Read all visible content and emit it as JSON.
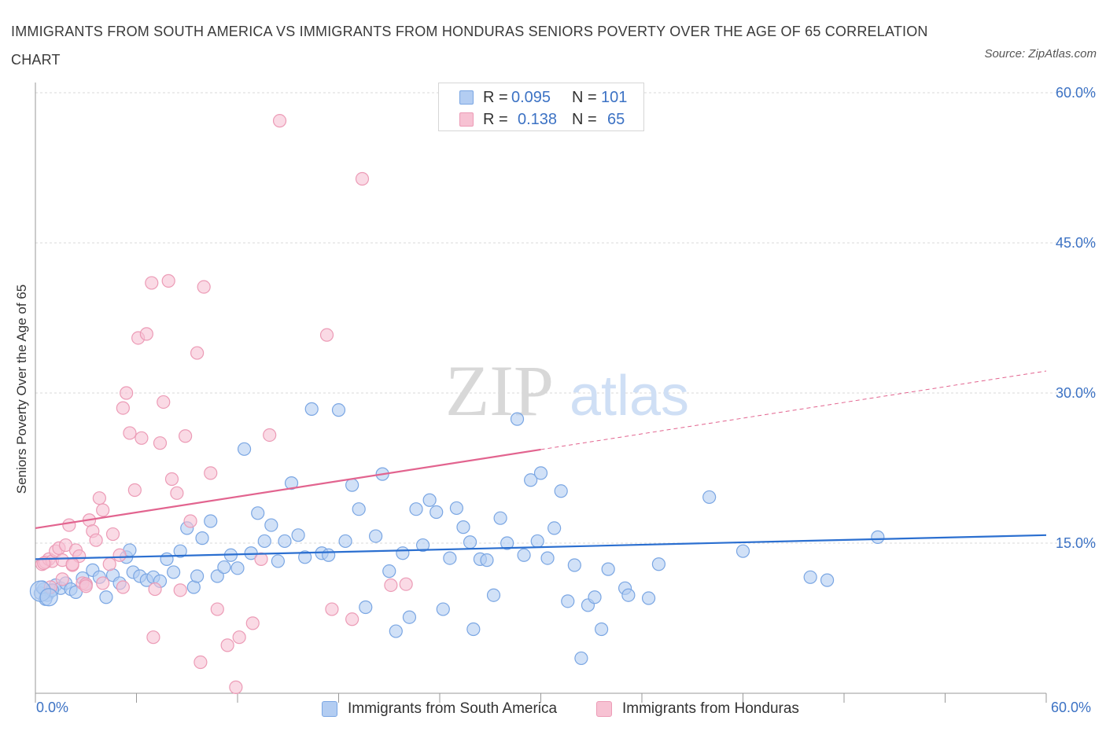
{
  "title": "IMMIGRANTS FROM SOUTH AMERICA VS IMMIGRANTS FROM HONDURAS SENIORS POVERTY OVER THE AGE OF 65 CORRELATION CHART",
  "source": "Source: ZipAtlas.com",
  "watermark": {
    "zip": "ZIP",
    "atlas": "atlas"
  },
  "legend": {
    "rows": [
      {
        "r_label": "R = ",
        "r_value": "0.095",
        "n_label": "N = ",
        "n_value": "101"
      },
      {
        "r_label": "R = ",
        "r_value": "0.138",
        "n_label": "N = ",
        "n_value": "65"
      }
    ]
  },
  "colors": {
    "blue_fill": "#b3cdf2",
    "blue_stroke": "#7aa6e3",
    "blue_line": "#2b6fd0",
    "pink_fill": "#f7c2d3",
    "pink_stroke": "#ec9bb6",
    "pink_line": "#e2648f",
    "axis_text": "#3c72c4",
    "grid": "#d9d9d9"
  },
  "chart_data": {
    "type": "scatter",
    "title": "IMMIGRANTS FROM SOUTH AMERICA VS IMMIGRANTS FROM HONDURAS SENIORS POVERTY OVER THE AGE OF 65 CORRELATION CHART",
    "xlabel": "",
    "ylabel": "Seniors Poverty Over the Age of 65",
    "xlim": [
      0,
      60
    ],
    "ylim": [
      0,
      60
    ],
    "x_tick_labels": [
      "0.0%",
      "60.0%"
    ],
    "y_tick_labels": [
      "15.0%",
      "30.0%",
      "45.0%",
      "60.0%"
    ],
    "y_tick_values": [
      15,
      30,
      45,
      60
    ],
    "grid": true,
    "legend_position": "top-center",
    "series": [
      {
        "name": "Immigrants from South America",
        "color": "#b3cdf2",
        "trend": {
          "x0": 0,
          "y0": 13.4,
          "x1": 60,
          "y1": 15.8,
          "dashed_from": null
        },
        "points": [
          [
            0.3,
            10.0
          ],
          [
            0.5,
            10.4
          ],
          [
            0.7,
            9.8
          ],
          [
            0.9,
            10.2
          ],
          [
            1.2,
            10.8
          ],
          [
            1.5,
            10.5
          ],
          [
            1.8,
            11.0
          ],
          [
            2.1,
            10.4
          ],
          [
            2.4,
            10.1
          ],
          [
            2.8,
            11.5
          ],
          [
            3.0,
            10.9
          ],
          [
            3.4,
            12.3
          ],
          [
            3.8,
            11.6
          ],
          [
            4.2,
            9.6
          ],
          [
            4.6,
            11.8
          ],
          [
            5.0,
            11.0
          ],
          [
            5.4,
            13.6
          ],
          [
            5.6,
            14.3
          ],
          [
            5.8,
            12.1
          ],
          [
            6.2,
            11.7
          ],
          [
            6.6,
            11.3
          ],
          [
            7.0,
            11.6
          ],
          [
            7.4,
            11.2
          ],
          [
            7.8,
            13.4
          ],
          [
            8.2,
            12.1
          ],
          [
            8.6,
            14.2
          ],
          [
            9.0,
            16.5
          ],
          [
            9.4,
            10.6
          ],
          [
            9.6,
            11.7
          ],
          [
            9.9,
            15.5
          ],
          [
            10.4,
            17.2
          ],
          [
            10.8,
            11.7
          ],
          [
            11.2,
            12.6
          ],
          [
            11.6,
            13.8
          ],
          [
            12.0,
            12.5
          ],
          [
            12.4,
            24.4
          ],
          [
            12.8,
            14.0
          ],
          [
            13.2,
            18.0
          ],
          [
            13.6,
            15.2
          ],
          [
            14.0,
            16.8
          ],
          [
            14.4,
            13.2
          ],
          [
            14.8,
            15.2
          ],
          [
            15.2,
            21.0
          ],
          [
            15.6,
            15.8
          ],
          [
            16.0,
            13.6
          ],
          [
            16.4,
            28.4
          ],
          [
            17.0,
            14.0
          ],
          [
            17.4,
            13.8
          ],
          [
            18.0,
            28.3
          ],
          [
            18.4,
            15.2
          ],
          [
            18.8,
            20.8
          ],
          [
            19.2,
            18.4
          ],
          [
            19.6,
            8.6
          ],
          [
            20.2,
            15.7
          ],
          [
            20.6,
            21.9
          ],
          [
            21.0,
            12.2
          ],
          [
            21.4,
            6.2
          ],
          [
            21.8,
            14.0
          ],
          [
            22.2,
            7.6
          ],
          [
            22.6,
            18.4
          ],
          [
            23.0,
            14.8
          ],
          [
            23.4,
            19.3
          ],
          [
            23.8,
            18.1
          ],
          [
            24.2,
            8.4
          ],
          [
            24.6,
            13.5
          ],
          [
            25.0,
            18.5
          ],
          [
            25.4,
            16.6
          ],
          [
            25.8,
            15.1
          ],
          [
            26.0,
            6.4
          ],
          [
            26.4,
            13.4
          ],
          [
            26.8,
            13.3
          ],
          [
            27.2,
            9.8
          ],
          [
            27.6,
            17.5
          ],
          [
            28.0,
            15.0
          ],
          [
            28.6,
            27.4
          ],
          [
            29.0,
            13.8
          ],
          [
            29.4,
            21.3
          ],
          [
            29.8,
            15.2
          ],
          [
            30.0,
            22.0
          ],
          [
            30.4,
            13.5
          ],
          [
            30.8,
            16.5
          ],
          [
            31.2,
            20.2
          ],
          [
            31.6,
            9.2
          ],
          [
            32.0,
            12.8
          ],
          [
            32.4,
            3.5
          ],
          [
            32.8,
            8.8
          ],
          [
            33.2,
            9.6
          ],
          [
            33.6,
            6.4
          ],
          [
            34.0,
            12.4
          ],
          [
            35.0,
            10.5
          ],
          [
            35.2,
            9.8
          ],
          [
            36.4,
            9.5
          ],
          [
            37.0,
            12.9
          ],
          [
            40.0,
            19.6
          ],
          [
            42.0,
            14.2
          ],
          [
            46.0,
            11.6
          ],
          [
            47.0,
            11.3
          ],
          [
            50.0,
            15.6
          ],
          [
            0.4,
            10.6
          ],
          [
            0.6,
            9.4
          ],
          [
            1.0,
            10.3
          ]
        ]
      },
      {
        "name": "Immigrants from Honduras",
        "color": "#f7c2d3",
        "trend": {
          "x0": 0,
          "y0": 16.5,
          "x1": 60,
          "y1": 32.2,
          "dashed_from": 30
        },
        "points": [
          [
            0.4,
            12.9
          ],
          [
            0.6,
            13.1
          ],
          [
            0.8,
            13.4
          ],
          [
            1.0,
            13.2
          ],
          [
            1.2,
            14.2
          ],
          [
            1.4,
            14.5
          ],
          [
            1.6,
            13.3
          ],
          [
            1.8,
            14.8
          ],
          [
            2.0,
            16.8
          ],
          [
            2.2,
            12.8
          ],
          [
            2.4,
            14.3
          ],
          [
            2.6,
            13.7
          ],
          [
            2.8,
            11.0
          ],
          [
            3.0,
            10.9
          ],
          [
            3.2,
            17.3
          ],
          [
            3.4,
            16.2
          ],
          [
            3.6,
            15.3
          ],
          [
            3.8,
            19.5
          ],
          [
            4.0,
            18.3
          ],
          [
            4.4,
            12.9
          ],
          [
            4.6,
            15.9
          ],
          [
            5.0,
            13.8
          ],
          [
            5.2,
            28.5
          ],
          [
            5.4,
            30.0
          ],
          [
            5.6,
            26.0
          ],
          [
            5.9,
            20.3
          ],
          [
            6.1,
            35.5
          ],
          [
            6.3,
            25.5
          ],
          [
            6.6,
            35.9
          ],
          [
            6.9,
            41.0
          ],
          [
            7.1,
            10.4
          ],
          [
            7.4,
            25.0
          ],
          [
            7.6,
            29.1
          ],
          [
            7.9,
            41.2
          ],
          [
            8.1,
            21.4
          ],
          [
            8.4,
            20.0
          ],
          [
            8.6,
            10.3
          ],
          [
            8.9,
            25.7
          ],
          [
            9.2,
            17.2
          ],
          [
            9.6,
            34.0
          ],
          [
            10.0,
            40.6
          ],
          [
            10.4,
            22.0
          ],
          [
            10.8,
            8.4
          ],
          [
            11.4,
            4.8
          ],
          [
            12.1,
            5.6
          ],
          [
            12.9,
            7.0
          ],
          [
            13.4,
            13.4
          ],
          [
            13.9,
            25.8
          ],
          [
            14.5,
            57.2
          ],
          [
            17.3,
            35.8
          ],
          [
            17.6,
            8.4
          ],
          [
            18.8,
            7.4
          ],
          [
            19.4,
            51.4
          ],
          [
            21.1,
            10.8
          ],
          [
            22.0,
            10.9
          ],
          [
            9.8,
            3.1
          ],
          [
            11.9,
            0.6
          ],
          [
            7.0,
            5.6
          ],
          [
            5.2,
            10.6
          ],
          [
            4.0,
            11.0
          ],
          [
            3.0,
            10.7
          ],
          [
            2.2,
            12.9
          ],
          [
            1.6,
            11.4
          ],
          [
            0.9,
            10.6
          ],
          [
            0.5,
            13.0
          ]
        ]
      }
    ]
  },
  "bottom_legend": [
    {
      "label": "Immigrants from South America"
    },
    {
      "label": "Immigrants from Honduras"
    }
  ]
}
